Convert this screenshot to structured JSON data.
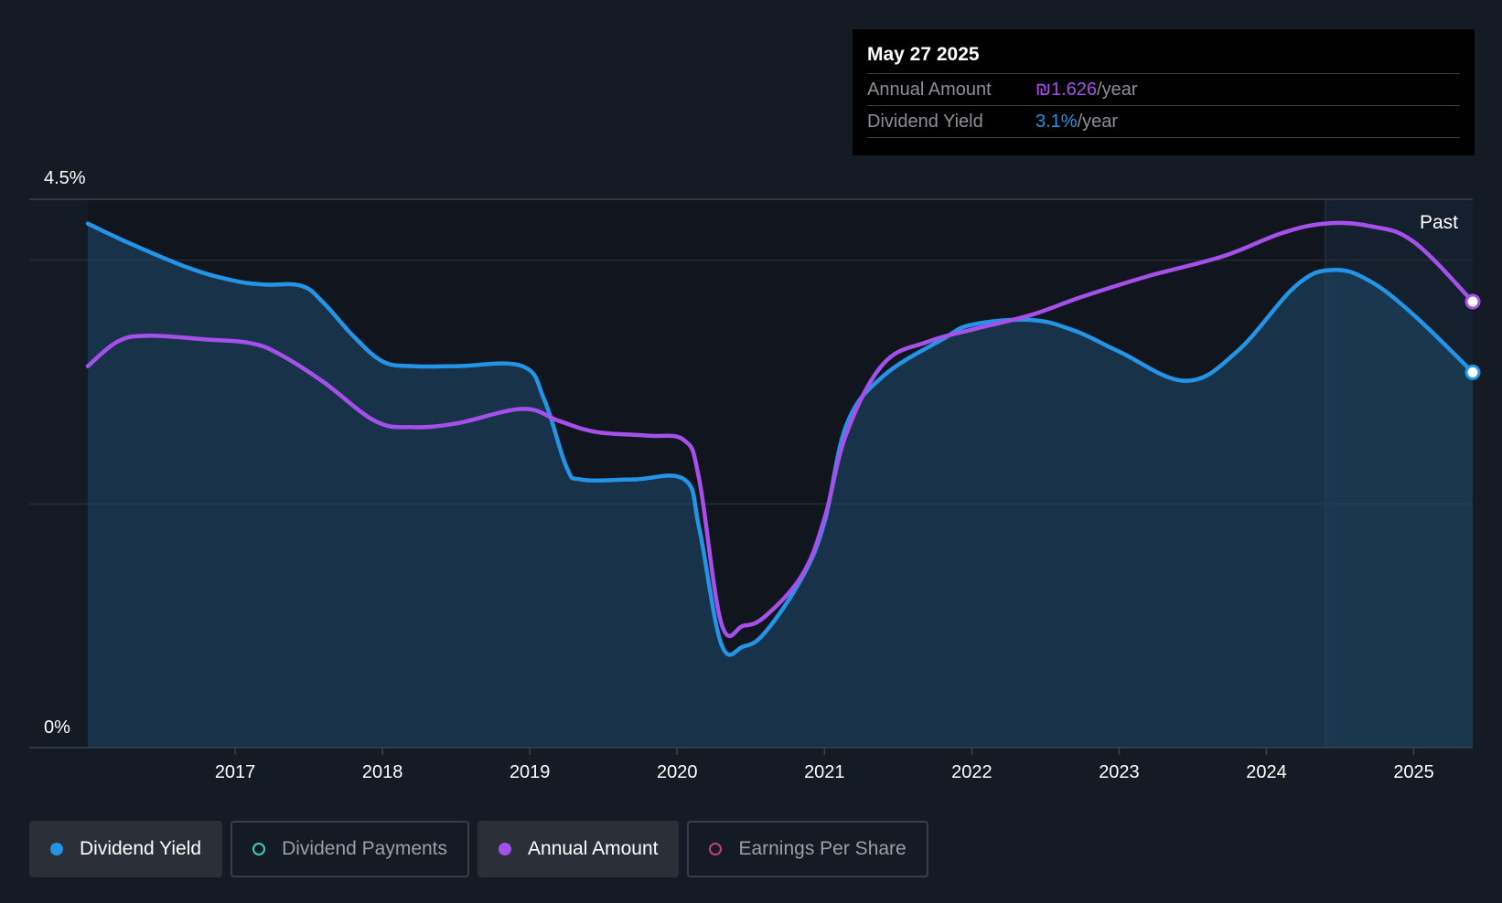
{
  "tooltip": {
    "date": "May 27 2025",
    "annual_label": "Annual Amount",
    "annual_value": "₪1.626",
    "annual_unit": "/year",
    "yield_label": "Dividend Yield",
    "yield_value": "3.1%",
    "yield_unit": "/year"
  },
  "past_label": "Past",
  "legend": [
    {
      "label": "Dividend Yield",
      "color": "#2394e6",
      "active": true
    },
    {
      "label": "Dividend Payments",
      "color": "#3ccfc0",
      "active": false
    },
    {
      "label": "Annual Amount",
      "color": "#a550eb",
      "active": true
    },
    {
      "label": "Earnings Per Share",
      "color": "#c0427a",
      "active": false
    }
  ],
  "colors": {
    "yield": "#2394e6",
    "annual": "#a550eb",
    "background": "#151b24"
  },
  "chart_data": {
    "type": "line",
    "y_tick_labels": [
      "0%",
      "4.5%"
    ],
    "ylim": [
      0,
      4.5
    ],
    "xlim": [
      2016.0,
      2025.4
    ],
    "x_ticks": [
      2017,
      2018,
      2019,
      2020,
      2021,
      2022,
      2023,
      2024,
      2025
    ],
    "x_tick_labels": [
      "2017",
      "2018",
      "2019",
      "2020",
      "2021",
      "2022",
      "2023",
      "2024",
      "2025"
    ],
    "past_region_start": 2024.4,
    "grid": true,
    "series": [
      {
        "name": "Dividend Yield",
        "area": true,
        "points": [
          [
            2016.0,
            4.3
          ],
          [
            2016.3,
            4.13
          ],
          [
            2016.7,
            3.93
          ],
          [
            2017.0,
            3.83
          ],
          [
            2017.2,
            3.8
          ],
          [
            2017.45,
            3.79
          ],
          [
            2017.6,
            3.65
          ],
          [
            2017.8,
            3.38
          ],
          [
            2018.0,
            3.17
          ],
          [
            2018.2,
            3.13
          ],
          [
            2018.5,
            3.13
          ],
          [
            2018.95,
            3.13
          ],
          [
            2019.1,
            2.85
          ],
          [
            2019.25,
            2.3
          ],
          [
            2019.35,
            2.2
          ],
          [
            2019.7,
            2.2
          ],
          [
            2020.05,
            2.2
          ],
          [
            2020.15,
            1.8
          ],
          [
            2020.3,
            0.85
          ],
          [
            2020.45,
            0.83
          ],
          [
            2020.6,
            0.95
          ],
          [
            2020.85,
            1.4
          ],
          [
            2021.0,
            1.85
          ],
          [
            2021.15,
            2.65
          ],
          [
            2021.4,
            3.05
          ],
          [
            2021.8,
            3.35
          ],
          [
            2022.0,
            3.47
          ],
          [
            2022.4,
            3.51
          ],
          [
            2022.7,
            3.42
          ],
          [
            2023.0,
            3.25
          ],
          [
            2023.45,
            3.01
          ],
          [
            2023.8,
            3.25
          ],
          [
            2024.2,
            3.79
          ],
          [
            2024.45,
            3.92
          ],
          [
            2024.7,
            3.83
          ],
          [
            2025.0,
            3.55
          ],
          [
            2025.4,
            3.08
          ]
        ]
      },
      {
        "name": "Annual Amount",
        "area": false,
        "points": [
          [
            2016.0,
            3.13
          ],
          [
            2016.2,
            3.33
          ],
          [
            2016.4,
            3.38
          ],
          [
            2016.8,
            3.35
          ],
          [
            2017.1,
            3.32
          ],
          [
            2017.3,
            3.23
          ],
          [
            2017.6,
            3.0
          ],
          [
            2017.95,
            2.68
          ],
          [
            2018.2,
            2.63
          ],
          [
            2018.5,
            2.66
          ],
          [
            2018.95,
            2.78
          ],
          [
            2019.2,
            2.68
          ],
          [
            2019.45,
            2.59
          ],
          [
            2019.8,
            2.56
          ],
          [
            2020.05,
            2.52
          ],
          [
            2020.15,
            2.2
          ],
          [
            2020.3,
            1.02
          ],
          [
            2020.45,
            1.0
          ],
          [
            2020.6,
            1.08
          ],
          [
            2020.85,
            1.42
          ],
          [
            2021.0,
            1.88
          ],
          [
            2021.15,
            2.58
          ],
          [
            2021.4,
            3.15
          ],
          [
            2021.7,
            3.33
          ],
          [
            2022.0,
            3.43
          ],
          [
            2022.4,
            3.55
          ],
          [
            2022.75,
            3.7
          ],
          [
            2023.2,
            3.87
          ],
          [
            2023.7,
            4.03
          ],
          [
            2024.1,
            4.22
          ],
          [
            2024.4,
            4.3
          ],
          [
            2024.7,
            4.28
          ],
          [
            2025.0,
            4.15
          ],
          [
            2025.4,
            3.66
          ]
        ]
      }
    ]
  }
}
